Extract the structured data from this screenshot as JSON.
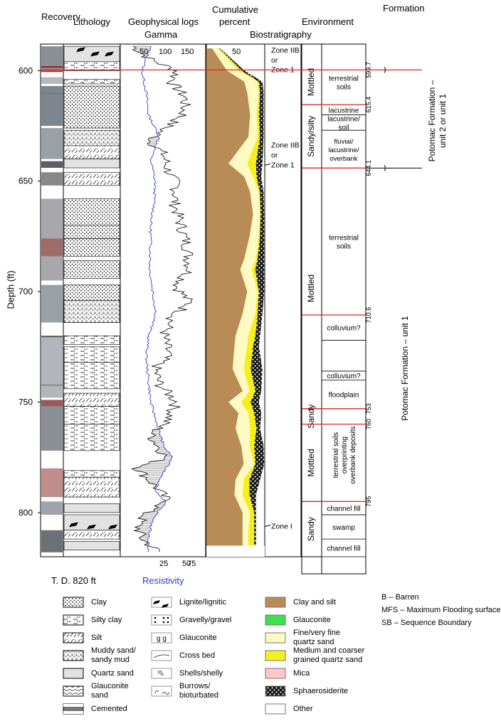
{
  "headers": {
    "recovery": "Recovery",
    "lithology": "Lithology",
    "geo_logs": "Geophysical logs",
    "gamma": "Gamma",
    "cumulative": "Cumulative",
    "percent": "percent",
    "biostrat": "Biostratigraphy",
    "environment": "Environment",
    "formation": "Formation",
    "resistivity": "Resistivity",
    "td": "T. D. 820 ft",
    "depth_axis": "Depth (ft)"
  },
  "depth_ticks": [
    "600",
    "650",
    "700",
    "750",
    "800"
  ],
  "gamma_ticks": [
    "50",
    "100",
    "150"
  ],
  "res_ticks": [
    "25",
    "50",
    "75"
  ],
  "cum_ticks": [
    "50"
  ],
  "zones": [
    {
      "label": "Zone IIB",
      "depth": 590.5
    },
    {
      "label": "or",
      "depth": 595
    },
    {
      "label": "Zone 1",
      "depth": 599.5
    },
    {
      "label": "Zone IIB",
      "depth": 633.5
    },
    {
      "label": "or",
      "depth": 638
    },
    {
      "label": "Zone 1",
      "depth": 642.5
    },
    {
      "label": "Zone I",
      "depth": 806
    }
  ],
  "environment_columns": {
    "lithofacies": [
      {
        "label": "Mottled",
        "top": 595,
        "bottom": 615.4
      },
      {
        "label": "Sandy/silty",
        "top": 615.4,
        "bottom": 644.1
      },
      {
        "label": "Mottled",
        "top": 644.1,
        "bottom": 753
      },
      {
        "label": "Sandy",
        "top": 753,
        "bottom": 760
      },
      {
        "label": "Mottled",
        "top": 760,
        "bottom": 795
      },
      {
        "label": "Sandy",
        "top": 795,
        "bottom": 820
      }
    ],
    "environments": [
      {
        "label": "terrestrial\nsoils",
        "top": 595,
        "bottom": 615.4
      },
      {
        "label": "lacustrine",
        "top": 615.4,
        "bottom": 620
      },
      {
        "label": "lacustrine/\nsoil",
        "top": 620,
        "bottom": 627
      },
      {
        "label": "fluvial/\nlacustrine/\noverbank",
        "top": 627,
        "bottom": 644.1
      },
      {
        "label": "terrestrial\nsoils",
        "top": 644.1,
        "bottom": 710.6
      },
      {
        "label": "colluvium?",
        "top": 710.6,
        "bottom": 722
      },
      {
        "label": "",
        "top": 722,
        "bottom": 736
      },
      {
        "label": "colluvium?",
        "top": 736,
        "bottom": 740
      },
      {
        "label": "floodplain",
        "top": 740,
        "bottom": 753
      },
      {
        "label": "terrestrial soils\noverprinting\noverbank deposits",
        "top": 753,
        "bottom": 795
      },
      {
        "label": "channel fill",
        "top": 795,
        "bottom": 801
      },
      {
        "label": "swamp",
        "top": 801,
        "bottom": 812
      },
      {
        "label": "channel fill",
        "top": 812,
        "bottom": 820
      }
    ],
    "boundary_labels": [
      "599.7",
      "615.4",
      "644.1",
      "710.6",
      "753",
      "760",
      "795"
    ]
  },
  "formations": {
    "upper": "Potomac Formation –\nunit 2 or unit 1",
    "lower": "Potomac Formation – unit 1"
  },
  "lithology_legend": [
    {
      "label": "Clay",
      "pattern": "clay"
    },
    {
      "label": "Silty clay",
      "pattern": "siltyclay"
    },
    {
      "label": "Silt",
      "pattern": "silt"
    },
    {
      "label": "Muddy sand/\nsandy mud",
      "pattern": "muddysand"
    },
    {
      "label": "Quartz sand",
      "pattern": "quartz"
    },
    {
      "label": "Glauconite\nsand",
      "pattern": "glaucsand"
    },
    {
      "label": "Cemented",
      "pattern": "cemented"
    }
  ],
  "feature_legend": [
    {
      "label": "Lignite/lignitic",
      "symbol": "lignite"
    },
    {
      "label": "Gravelly/gravel",
      "symbol": "gravel"
    },
    {
      "label": "Glauconite",
      "symbol": "glauc",
      "glyph": "g   g"
    },
    {
      "label": "Cross bed",
      "symbol": "crossbed"
    },
    {
      "label": "Shells/shelly",
      "symbol": "shells"
    },
    {
      "label": "Burrows/\nbioturbated",
      "symbol": "burrows"
    }
  ],
  "composition_legend": [
    {
      "label": "Clay and silt",
      "color": "#b98c57"
    },
    {
      "label": "Glauconite",
      "color": "#3ee04e"
    },
    {
      "label": "Fine/very fine\nquartz sand",
      "color": "#fffac2"
    },
    {
      "label": "Medium and coarser\ngrained quartz sand",
      "color": "#f7f01e"
    },
    {
      "label": "Mica",
      "color": "#ffc7c7"
    },
    {
      "label": "Sphaerosiderite",
      "color": "#111111"
    },
    {
      "label": "Other",
      "color": "#ffffff"
    }
  ],
  "abbreviations": [
    "B – Barren",
    "MFS – Maximum Flooding surface",
    "SB – Sequence Boundary"
  ],
  "colors": {
    "resistivity_line": "#2d3fd4",
    "gamma_fill": "#c4c4c4",
    "boundary_line": "#e8222a",
    "clay_silt": "#b98c57",
    "fine_sand": "#fffac2",
    "coarse_sand": "#f7f01e"
  },
  "chart_data": {
    "type": "area",
    "depth_range": [
      588,
      820
    ],
    "cumulative_percent": {
      "depth": [
        590,
        600,
        605,
        610,
        620,
        630,
        642,
        648,
        655,
        665,
        675,
        685,
        690,
        700,
        710,
        720,
        725,
        735,
        745,
        750,
        755,
        762,
        770,
        778,
        785,
        792,
        800,
        808,
        815
      ],
      "clay_silt": [
        10,
        35,
        65,
        70,
        75,
        72,
        38,
        65,
        75,
        80,
        74,
        65,
        58,
        70,
        62,
        50,
        48,
        45,
        62,
        38,
        55,
        50,
        60,
        64,
        50,
        48,
        62,
        62,
        62
      ],
      "fine_sand": [
        20,
        55,
        88,
        90,
        86,
        88,
        70,
        80,
        90,
        92,
        90,
        85,
        78,
        88,
        84,
        72,
        70,
        64,
        74,
        60,
        72,
        75,
        74,
        82,
        64,
        62,
        75,
        72,
        72
      ],
      "coarse_sand": [
        22,
        60,
        90,
        92,
        90,
        92,
        85,
        86,
        92,
        93,
        92,
        88,
        84,
        90,
        88,
        84,
        80,
        76,
        84,
        76,
        82,
        86,
        82,
        84,
        74,
        74,
        82,
        82,
        82
      ],
      "sphaerosiderite": [
        24,
        65,
        96,
        98,
        98,
        98,
        96,
        94,
        98,
        99,
        99,
        99,
        99,
        99,
        96,
        92,
        90,
        96,
        94,
        90,
        94,
        92,
        98,
        99,
        92,
        85,
        85,
        85,
        85
      ]
    }
  }
}
